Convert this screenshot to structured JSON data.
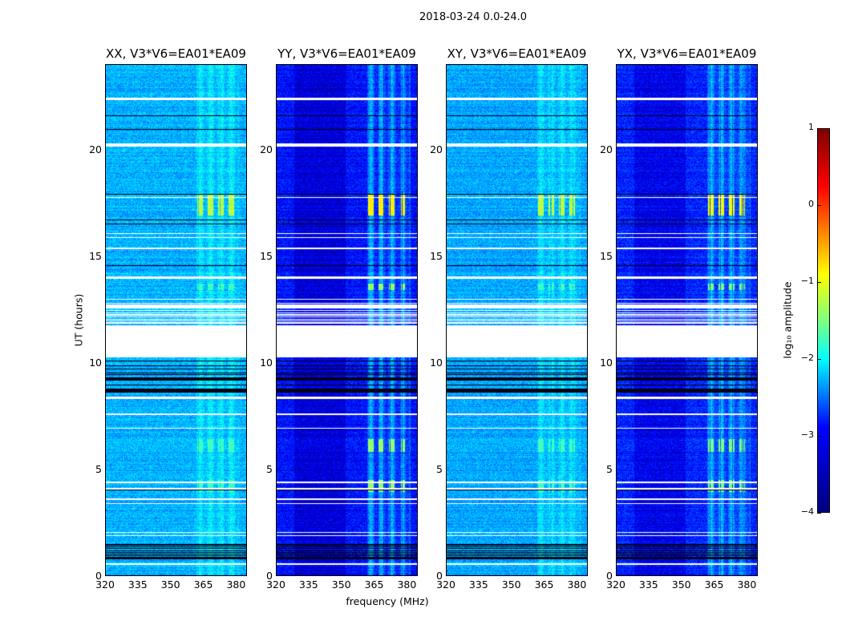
{
  "chart_data": {
    "type": "heatmap",
    "title": "2018-03-24 0.0-24.0",
    "xlabel": "frequency (MHz)",
    "ylabel": "UT (hours)",
    "xlim": [
      320,
      385
    ],
    "ylim": [
      0,
      24
    ],
    "x_ticks": [
      "320",
      "335",
      "350",
      "365",
      "380"
    ],
    "y_ticks": [
      "0",
      "5",
      "10",
      "15",
      "20"
    ],
    "panels": [
      {
        "title": "XX, V3*V6=EA01*EA09",
        "base_log_amp": -2.5,
        "rfi_boost": 0.35,
        "burst_peak": -1.2
      },
      {
        "title": "YY, V3*V6=EA01*EA09",
        "base_log_amp": -3.3,
        "rfi_boost": 0.8,
        "burst_peak": -0.8
      },
      {
        "title": "XY, V3*V6=EA01*EA09",
        "base_log_amp": -2.55,
        "rfi_boost": 0.35,
        "burst_peak": -1.2
      },
      {
        "title": "YX, V3*V6=EA01*EA09",
        "base_log_amp": -3.2,
        "rfi_boost": 0.75,
        "burst_peak": -0.9
      }
    ],
    "rfi_band_mhz": [
      362,
      382
    ],
    "bursts_hours": [
      [
        16.9,
        17.9
      ],
      [
        13.4,
        13.7
      ],
      [
        3.9,
        4.5
      ],
      [
        5.8,
        6.4
      ]
    ],
    "flagged_intervals_hours": [
      [
        10.25,
        11.75
      ],
      [
        22.35,
        22.45
      ],
      [
        20.15,
        20.3
      ],
      [
        13.95,
        14.05
      ],
      [
        17.75,
        17.8
      ],
      [
        16.05,
        16.1
      ],
      [
        15.85,
        15.9
      ],
      [
        15.35,
        15.4
      ],
      [
        12.95,
        13.0
      ],
      [
        12.65,
        12.7
      ],
      [
        8.3,
        8.4
      ],
      [
        7.55,
        7.6
      ],
      [
        6.9,
        6.95
      ],
      [
        4.35,
        4.4
      ],
      [
        4.05,
        4.1
      ],
      [
        3.55,
        3.6
      ],
      [
        3.35,
        3.4
      ],
      [
        2.0,
        2.05
      ],
      [
        1.85,
        1.9
      ],
      [
        0.5,
        0.55
      ]
    ],
    "dark_line_regions_hours": [
      [
        0.7,
        1.5
      ],
      [
        8.6,
        10.1
      ]
    ],
    "colorbar": {
      "label": "log₁₀ amplitude",
      "range": [
        -4,
        1
      ],
      "ticks": [
        "1",
        "0",
        "−1",
        "−2",
        "−3",
        "−4"
      ],
      "colormap": "jet"
    }
  }
}
